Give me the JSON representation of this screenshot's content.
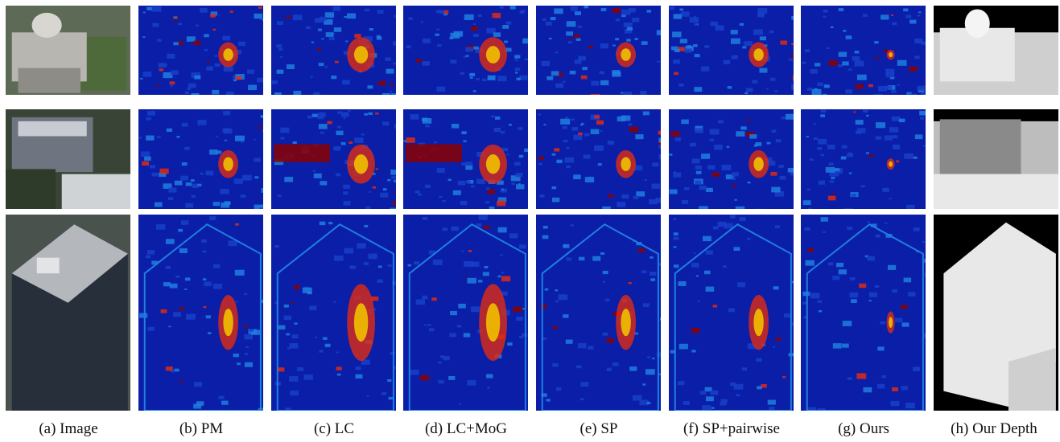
{
  "figure": {
    "columns": [
      {
        "key": "image",
        "caption": "(a) Image"
      },
      {
        "key": "pm",
        "caption": "(b) PM"
      },
      {
        "key": "lc",
        "caption": "(c) LC"
      },
      {
        "key": "lcmog",
        "caption": "(d) LC+MoG"
      },
      {
        "key": "sp",
        "caption": "(e) SP"
      },
      {
        "key": "sppairwise",
        "caption": "(f) SP+pairwise"
      },
      {
        "key": "ours",
        "caption": "(g) Ours"
      },
      {
        "key": "depth",
        "caption": "(h) Our Depth"
      }
    ],
    "rows": [
      "capitol-dome-aerial",
      "office-block-aerial",
      "tower-aerial"
    ],
    "colors": {
      "error_low": "#0a1ea8",
      "error_mid": "#1f7fe0",
      "error_high": "#e02a10",
      "error_max": "#8b0000",
      "depth_near": "#e8e8e8",
      "depth_far": "#000000"
    }
  }
}
